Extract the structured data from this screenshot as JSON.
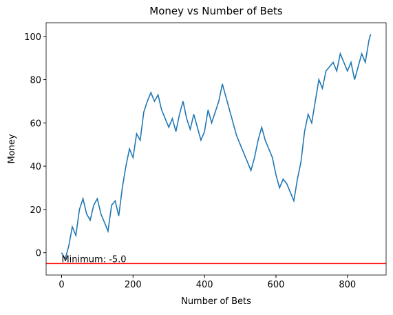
{
  "chart_data": {
    "type": "line",
    "title": "Money vs Number of Bets",
    "xlabel": "Number of Bets",
    "ylabel": "Money",
    "x": [
      0,
      10,
      20,
      30,
      40,
      50,
      60,
      70,
      80,
      90,
      100,
      110,
      120,
      130,
      140,
      150,
      160,
      170,
      180,
      190,
      200,
      210,
      220,
      230,
      240,
      250,
      260,
      270,
      280,
      290,
      300,
      310,
      320,
      330,
      340,
      350,
      360,
      370,
      380,
      390,
      400,
      410,
      420,
      430,
      440,
      450,
      460,
      470,
      480,
      490,
      500,
      510,
      520,
      530,
      540,
      550,
      560,
      570,
      580,
      590,
      600,
      610,
      620,
      630,
      640,
      650,
      660,
      670,
      680,
      690,
      700,
      710,
      720,
      730,
      740,
      750,
      760,
      770,
      780,
      790,
      800,
      810,
      820,
      830,
      840,
      850,
      860,
      865
    ],
    "values": [
      0,
      -3,
      3,
      12,
      8,
      20,
      25,
      18,
      15,
      22,
      25,
      18,
      14,
      10,
      22,
      24,
      17,
      30,
      40,
      48,
      44,
      55,
      52,
      65,
      70,
      74,
      70,
      73,
      66,
      62,
      58,
      62,
      56,
      64,
      70,
      62,
      57,
      64,
      58,
      52,
      56,
      66,
      60,
      65,
      70,
      78,
      72,
      66,
      60,
      54,
      50,
      46,
      42,
      38,
      44,
      52,
      58,
      52,
      48,
      44,
      36,
      30,
      34,
      32,
      28,
      24,
      34,
      42,
      56,
      64,
      60,
      70,
      80,
      76,
      84,
      86,
      88,
      84,
      92,
      88,
      84,
      88,
      80,
      86,
      92,
      88,
      98,
      101
    ],
    "color": "#1f77b4",
    "hline": {
      "y": -5,
      "color": "#ff0000"
    },
    "annotation": {
      "text": "Minimum: -5.0",
      "x": 0,
      "y": -5
    },
    "xlim": [
      -43.25,
      908.25
    ],
    "ylim": [
      -10.3,
      106.3
    ],
    "xticks": [
      0,
      200,
      400,
      600,
      800
    ],
    "yticks": [
      0,
      20,
      40,
      60,
      80,
      100
    ]
  }
}
